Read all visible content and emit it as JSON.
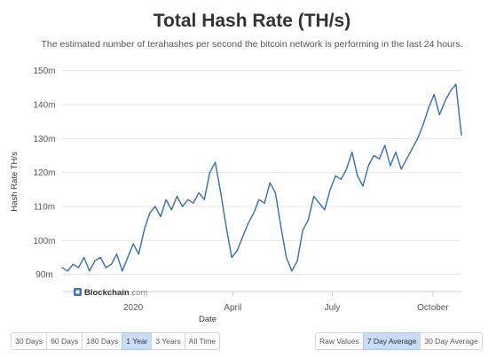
{
  "title": "Total Hash Rate (TH/s)",
  "subtitle": "The estimated number of terahashes per second the bitcoin network is performing in the last 24 hours.",
  "watermark": "Blockchain",
  "watermark_suffix": ".com",
  "range_buttons": [
    {
      "label": "30 Days",
      "active": false
    },
    {
      "label": "60 Days",
      "active": false
    },
    {
      "label": "180 Days",
      "active": false
    },
    {
      "label": "1 Year",
      "active": true
    },
    {
      "label": "3 Years",
      "active": false
    },
    {
      "label": "All Time",
      "active": false
    }
  ],
  "mode_buttons": [
    {
      "label": "Raw Values",
      "active": false
    },
    {
      "label": "7 Day Average",
      "active": true
    },
    {
      "label": "30 Day Average",
      "active": false
    }
  ],
  "colors": {
    "line": "#2f6fb8",
    "grid": "#e6e6e6",
    "active_button": "#c7ddf7"
  },
  "chart_data": {
    "type": "line",
    "xlabel": "Date",
    "ylabel": "Hash Rate TH/s",
    "ylim": [
      86,
      152
    ],
    "y_ticks": [
      {
        "value": 90,
        "label": "90m"
      },
      {
        "value": 100,
        "label": "100m"
      },
      {
        "value": 110,
        "label": "110m"
      },
      {
        "value": 120,
        "label": "120m"
      },
      {
        "value": 130,
        "label": "130m"
      },
      {
        "value": 140,
        "label": "140m"
      },
      {
        "value": 150,
        "label": "150m"
      }
    ],
    "xlim": [
      "2019-10-28",
      "2020-10-27"
    ],
    "x_ticks": [
      {
        "date": "2020-01-01",
        "label": "2020"
      },
      {
        "date": "2020-04-01",
        "label": "April"
      },
      {
        "date": "2020-07-01",
        "label": "July"
      },
      {
        "date": "2020-10-01",
        "label": "October"
      }
    ],
    "grid": true,
    "series": [
      {
        "x": [
          "2019-10-28",
          "2019-11-02",
          "2019-11-07",
          "2019-11-12",
          "2019-11-17",
          "2019-11-22",
          "2019-11-27",
          "2019-12-02",
          "2019-12-07",
          "2019-12-12",
          "2019-12-17",
          "2019-12-22",
          "2019-12-27",
          "2020-01-01",
          "2020-01-06",
          "2020-01-11",
          "2020-01-16",
          "2020-01-21",
          "2020-01-26",
          "2020-01-31",
          "2020-02-05",
          "2020-02-10",
          "2020-02-15",
          "2020-02-20",
          "2020-02-25",
          "2020-03-01",
          "2020-03-06",
          "2020-03-11",
          "2020-03-16",
          "2020-03-21",
          "2020-03-26",
          "2020-03-31",
          "2020-04-05",
          "2020-04-10",
          "2020-04-15",
          "2020-04-20",
          "2020-04-25",
          "2020-04-30",
          "2020-05-05",
          "2020-05-10",
          "2020-05-15",
          "2020-05-20",
          "2020-05-25",
          "2020-05-30",
          "2020-06-04",
          "2020-06-09",
          "2020-06-14",
          "2020-06-19",
          "2020-06-24",
          "2020-06-29",
          "2020-07-04",
          "2020-07-09",
          "2020-07-14",
          "2020-07-19",
          "2020-07-24",
          "2020-07-29",
          "2020-08-03",
          "2020-08-08",
          "2020-08-13",
          "2020-08-18",
          "2020-08-23",
          "2020-08-28",
          "2020-09-02",
          "2020-09-07",
          "2020-09-12",
          "2020-09-17",
          "2020-09-22",
          "2020-09-27",
          "2020-10-02",
          "2020-10-07",
          "2020-10-12",
          "2020-10-17",
          "2020-10-22",
          "2020-10-27"
        ],
        "y": [
          92,
          91,
          93,
          92,
          95,
          91,
          94,
          95,
          92,
          93,
          96,
          91,
          95,
          99,
          96,
          103,
          108,
          110,
          107,
          112,
          109,
          113,
          110,
          112,
          111,
          114,
          112,
          120,
          123,
          114,
          104,
          95,
          97,
          101,
          105,
          108,
          112,
          111,
          117,
          114,
          104,
          95,
          91,
          94,
          103,
          106,
          113,
          111,
          109,
          115,
          119,
          118,
          121,
          126,
          119,
          116,
          122,
          125,
          124,
          128,
          122,
          126,
          121,
          124,
          127,
          130,
          134,
          139,
          143,
          137,
          141,
          144,
          146,
          131
        ]
      }
    ]
  }
}
